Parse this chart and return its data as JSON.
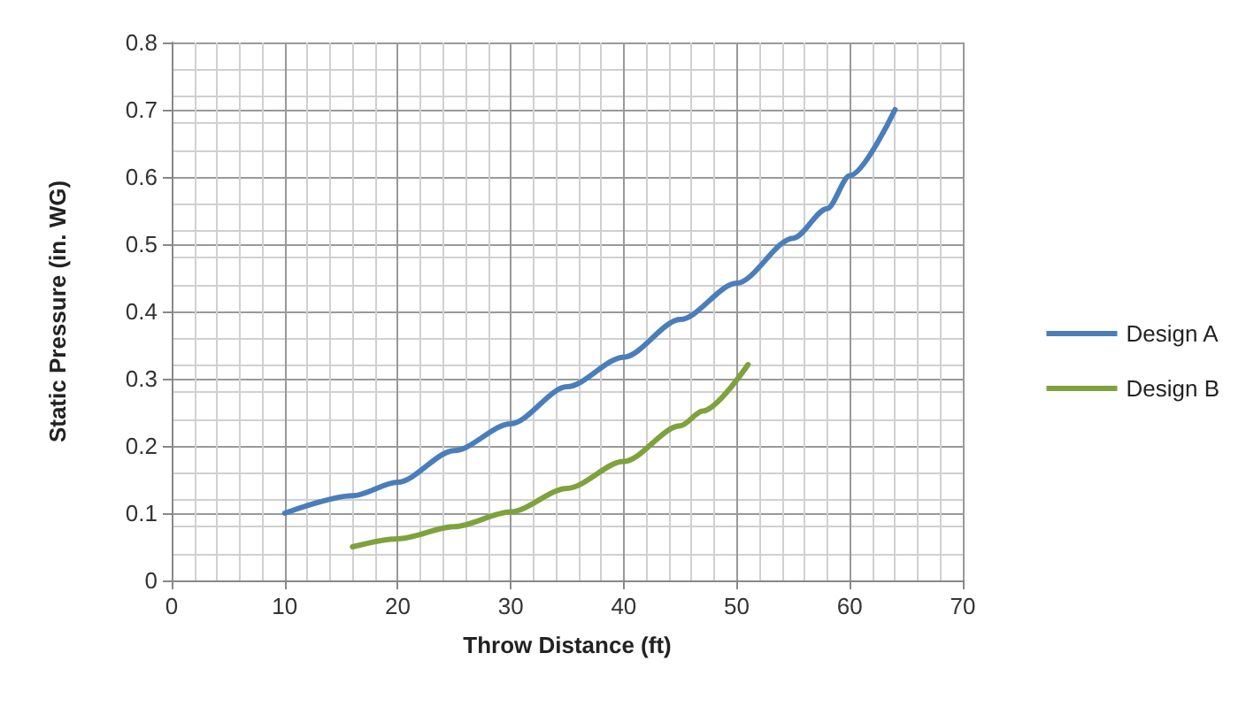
{
  "chart_data": {
    "type": "line",
    "xlabel": "Throw Distance (ft)",
    "ylabel": "Static Pressure (in. WG)",
    "xlim": [
      0,
      70
    ],
    "xticks": [
      0,
      10,
      20,
      30,
      40,
      50,
      60,
      70
    ],
    "ylim": [
      0,
      0.8
    ],
    "yticks": [
      0,
      0.1,
      0.2,
      0.3,
      0.4,
      0.5,
      0.6,
      0.7,
      0.8
    ],
    "grid": true,
    "legend": "right",
    "marker": "none",
    "line_style": "solid",
    "series": [
      {
        "name": "Design A",
        "color": "#4a7ebb",
        "x": [
          10,
          16,
          20,
          25,
          30,
          35,
          40,
          45,
          50,
          55,
          58,
          60,
          64
        ],
        "values": [
          0.1,
          0.126,
          0.146,
          0.193,
          0.233,
          0.288,
          0.332,
          0.388,
          0.442,
          0.509,
          0.553,
          0.602,
          0.7
        ]
      },
      {
        "name": "Design B",
        "color": "#7ea23c",
        "x": [
          16,
          20,
          25,
          30,
          35,
          40,
          45,
          47,
          51
        ],
        "values": [
          0.05,
          0.062,
          0.08,
          0.102,
          0.137,
          0.177,
          0.23,
          0.252,
          0.321
        ]
      }
    ]
  }
}
